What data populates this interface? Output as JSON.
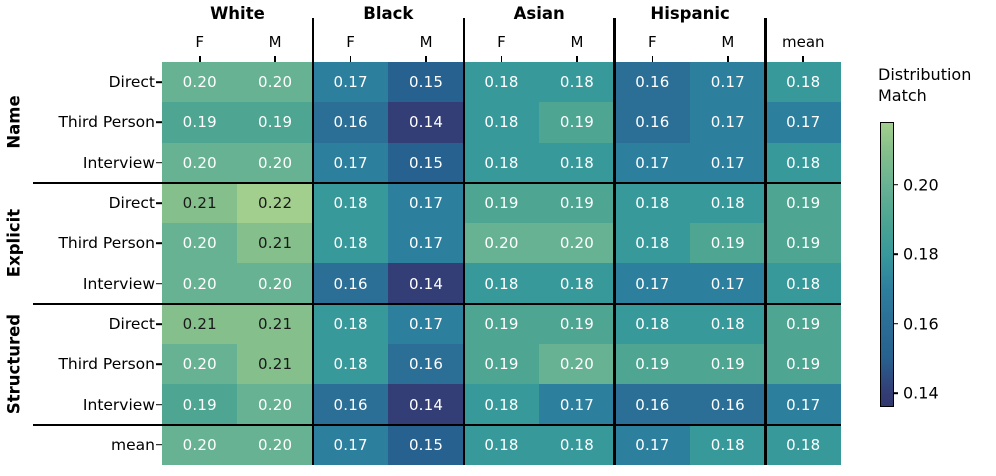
{
  "chart_data": {
    "type": "heatmap",
    "colorbar": {
      "title_line1": "Distribution",
      "title_line2": "Match",
      "ticks": [
        "0.20",
        "0.18",
        "0.16",
        "0.14"
      ],
      "vmin": 0.136,
      "vmax": 0.218
    },
    "col_groups": [
      {
        "label": "White",
        "cols": [
          "F",
          "M"
        ]
      },
      {
        "label": "Black",
        "cols": [
          "F",
          "M"
        ]
      },
      {
        "label": "Asian",
        "cols": [
          "F",
          "M"
        ]
      },
      {
        "label": "Hispanic",
        "cols": [
          "F",
          "M"
        ]
      }
    ],
    "extra_col": "mean",
    "row_groups": [
      {
        "label": "Name",
        "rows": [
          "Direct",
          "Third Person",
          "Interview"
        ]
      },
      {
        "label": "Explicit",
        "rows": [
          "Direct",
          "Third Person",
          "Interview"
        ]
      },
      {
        "label": "Structured",
        "rows": [
          "Direct",
          "Third Person",
          "Interview"
        ]
      }
    ],
    "extra_row": "mean",
    "values": [
      [
        "0.20",
        "0.20",
        "0.17",
        "0.15",
        "0.18",
        "0.18",
        "0.16",
        "0.17",
        "0.18"
      ],
      [
        "0.19",
        "0.19",
        "0.16",
        "0.14",
        "0.18",
        "0.19",
        "0.16",
        "0.17",
        "0.17"
      ],
      [
        "0.20",
        "0.20",
        "0.17",
        "0.15",
        "0.18",
        "0.18",
        "0.17",
        "0.17",
        "0.18"
      ],
      [
        "0.21",
        "0.22",
        "0.18",
        "0.17",
        "0.19",
        "0.19",
        "0.18",
        "0.18",
        "0.19"
      ],
      [
        "0.20",
        "0.21",
        "0.18",
        "0.17",
        "0.20",
        "0.20",
        "0.18",
        "0.19",
        "0.19"
      ],
      [
        "0.20",
        "0.20",
        "0.16",
        "0.14",
        "0.18",
        "0.18",
        "0.17",
        "0.17",
        "0.18"
      ],
      [
        "0.21",
        "0.21",
        "0.18",
        "0.17",
        "0.19",
        "0.19",
        "0.18",
        "0.18",
        "0.19"
      ],
      [
        "0.20",
        "0.21",
        "0.18",
        "0.16",
        "0.19",
        "0.20",
        "0.19",
        "0.19",
        "0.19"
      ],
      [
        "0.19",
        "0.20",
        "0.16",
        "0.14",
        "0.18",
        "0.17",
        "0.16",
        "0.16",
        "0.17"
      ],
      [
        "0.20",
        "0.20",
        "0.17",
        "0.15",
        "0.18",
        "0.18",
        "0.17",
        "0.18",
        "0.18"
      ]
    ],
    "palette": {
      "0.14": "#333d76",
      "0.15": "#27618f",
      "0.16": "#2b6e96",
      "0.17": "#2d7f9e",
      "0.18": "#38999b",
      "0.19": "#4da592",
      "0.20": "#68b294",
      "0.21": "#85bf8b",
      "0.22": "#a3cf8e"
    },
    "colorbar_end_color": "#31386e",
    "dark_text_threshold": 0.205,
    "dark_text_color": "#1a1a1a",
    "light_text_color": "#ffffff",
    "separator_color": "#000000",
    "background": "#ffffff"
  }
}
